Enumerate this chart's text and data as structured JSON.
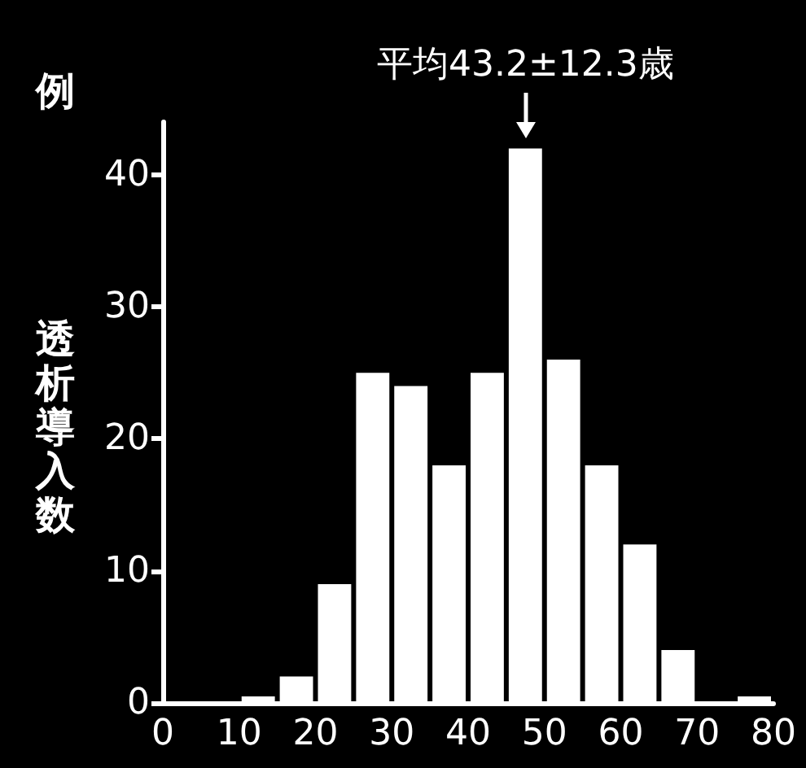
{
  "chart_data": {
    "type": "histogram",
    "ylabel": "透析導入数",
    "annotations": [
      "例",
      {
        "text": "平均43.2±12.3歳",
        "x": 47.5,
        "y": 42
      }
    ],
    "bins": [
      10,
      15,
      20,
      25,
      30,
      35,
      40,
      45,
      50,
      55,
      60,
      65,
      70,
      75,
      80
    ],
    "values": [
      0.5,
      2,
      9,
      25,
      24,
      18,
      25,
      42,
      26,
      18,
      12,
      4,
      0,
      0.5
    ],
    "color": "#ffffff",
    "xlim": [
      0,
      80
    ],
    "xticks": [
      0,
      10,
      20,
      30,
      40,
      50,
      60,
      70,
      80
    ],
    "ylim": [
      0,
      44
    ],
    "yticks": [
      0,
      10,
      20,
      30,
      40
    ],
    "grid": false
  }
}
